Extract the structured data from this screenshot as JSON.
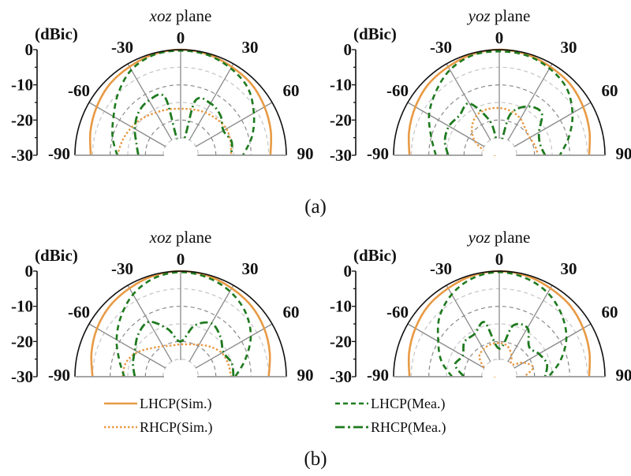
{
  "chart_data": {
    "type": "polar",
    "radial_unit_label": "(dBic)",
    "radial_ticks": [
      0,
      -10,
      -20,
      -30
    ],
    "radial_range": [
      -30,
      0
    ],
    "angle_ticks": [
      -90,
      -60,
      -30,
      0,
      30,
      60,
      90
    ],
    "angles": [
      -90,
      -75,
      -60,
      -45,
      -30,
      -15,
      0,
      15,
      30,
      45,
      60,
      75,
      90
    ],
    "legend": [
      {
        "name": "LHCP(Sim.)",
        "color": "#E89A45",
        "style": "solid"
      },
      {
        "name": "RHCP(Sim.)",
        "color": "#E89A45",
        "style": "dotted"
      },
      {
        "name": "LHCP(Mea.)",
        "color": "#1E7A1E",
        "style": "dashed"
      },
      {
        "name": "RHCP(Mea.)",
        "color": "#1E7A1E",
        "style": "dashdot"
      }
    ],
    "captions": [
      "(a)",
      "(b)"
    ],
    "panels": [
      {
        "group": "(a)",
        "title_italic": "xoz",
        "title_rest": " plane",
        "series": {
          "LHCP(Sim.)": [
            -4.5,
            -3.5,
            -2.5,
            -1.5,
            -1,
            -0.3,
            0,
            -0.3,
            -1,
            -1.5,
            -2.5,
            -3.5,
            -4.5
          ],
          "RHCP(Sim.)": [
            -12,
            -13,
            -14,
            -15,
            -16,
            -16.5,
            -16.8,
            -16.5,
            -16,
            -15.5,
            -15,
            -15.3,
            -15.7
          ],
          "LHCP(Mea.)": [
            -12,
            -10,
            -8,
            -5,
            -2,
            -0.5,
            -0.3,
            -0.5,
            -1.5,
            -3,
            -6,
            -9,
            -12.3
          ],
          "RHCP(Mea.)": [
            -18,
            -17,
            -15,
            -13,
            -12,
            -13,
            -27,
            -14,
            -13,
            -14,
            -16,
            -15,
            -15.7
          ]
        }
      },
      {
        "group": "(a)",
        "title_italic": "yoz",
        "title_rest": " plane",
        "series": {
          "LHCP(Sim.)": [
            -4.5,
            -3.5,
            -2.5,
            -1.5,
            -1,
            -0.3,
            0,
            -0.3,
            -1,
            -1.5,
            -2.5,
            -3.5,
            -4.5
          ],
          "RHCP(Sim.)": [
            -29,
            -26,
            -22,
            -19,
            -17,
            -16.5,
            -16.6,
            -17,
            -18,
            -19.5,
            -20,
            -19.5,
            -19
          ],
          "LHCP(Mea.)": [
            -12,
            -10,
            -7,
            -4.5,
            -2,
            -0.6,
            -0.5,
            -0.6,
            -1.5,
            -3,
            -6,
            -9.5,
            -12.8
          ],
          "RHCP(Mea.)": [
            -15.5,
            -14,
            -13.5,
            -14,
            -13,
            -20,
            -27,
            -18,
            -14,
            -13,
            -17,
            -18,
            -17
          ]
        }
      },
      {
        "group": "(b)",
        "title_italic": "xoz",
        "title_rest": " plane",
        "series": {
          "LHCP(Sim.)": [
            -5,
            -3.8,
            -2.6,
            -1.6,
            -1,
            -0.3,
            0,
            -0.3,
            -1,
            -1.6,
            -2.6,
            -3.8,
            -5
          ],
          "RHCP(Sim.)": [
            -13.5,
            -14,
            -16,
            -18.5,
            -20,
            -20.8,
            -20.8,
            -20.5,
            -19.5,
            -18,
            -16.5,
            -16,
            -15.7
          ],
          "LHCP(Mea.)": [
            -14,
            -12,
            -9,
            -6,
            -3,
            -1,
            -0.3,
            -0.8,
            -2,
            -4,
            -7,
            -11,
            -14.5
          ],
          "RHCP(Mea.)": [
            -17,
            -16,
            -15,
            -13,
            -12,
            -16,
            -20,
            -15,
            -12.5,
            -14,
            -16,
            -15,
            -15
          ]
        }
      },
      {
        "group": "(b)",
        "title_italic": "yoz",
        "title_rest": " plane",
        "series": {
          "LHCP(Sim.)": [
            -4.5,
            -3.5,
            -2.5,
            -1.5,
            -1,
            -0.3,
            0,
            -0.3,
            -1,
            -1.5,
            -2.5,
            -3.5,
            -4.5
          ],
          "RHCP(Sim.)": [
            -29,
            -27,
            -25,
            -22,
            -21,
            -20.5,
            -20.4,
            -21,
            -23,
            -25,
            -22,
            -20,
            -23
          ],
          "LHCP(Mea.)": [
            -16.6,
            -13,
            -10,
            -6,
            -3,
            -1,
            -0.3,
            -1,
            -2.5,
            -5,
            -8,
            -12,
            -16
          ],
          "RHCP(Mea.)": [
            -20,
            -17,
            -18,
            -16,
            -16,
            -14,
            -22,
            -15,
            -14,
            -18,
            -17,
            -16,
            -17
          ]
        }
      }
    ]
  }
}
